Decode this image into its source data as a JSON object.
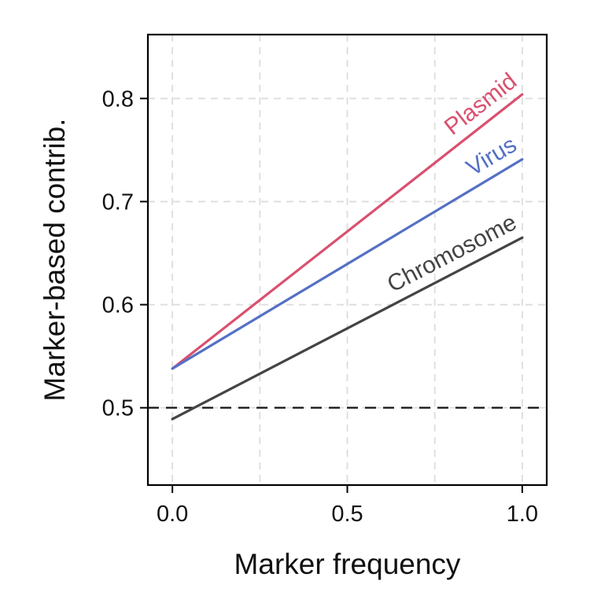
{
  "chart_data": {
    "type": "line",
    "title": "",
    "xlabel": "Marker frequency",
    "ylabel": "Marker-based contrib.",
    "xlim": [
      -0.07,
      1.07
    ],
    "ylim": [
      0.425,
      0.862
    ],
    "x_ticks": [
      "0.0",
      "0.5",
      "1.0"
    ],
    "y_ticks": [
      "0.5",
      "0.6",
      "0.7",
      "0.8"
    ],
    "grid": true,
    "legend": "none",
    "reference_line": {
      "y": 0.5,
      "style": "dashed",
      "color": "#111111"
    },
    "series": [
      {
        "name": "Plasmid",
        "color": "#d9506f",
        "x": [
          0.0,
          1.0
        ],
        "y": [
          0.538,
          0.804
        ]
      },
      {
        "name": "Virus",
        "color": "#5470c6",
        "x": [
          0.0,
          1.0
        ],
        "y": [
          0.538,
          0.741
        ]
      },
      {
        "name": "Chromosome",
        "color": "#444444",
        "x": [
          0.0,
          1.0
        ],
        "y": [
          0.489,
          0.665
        ]
      }
    ]
  }
}
